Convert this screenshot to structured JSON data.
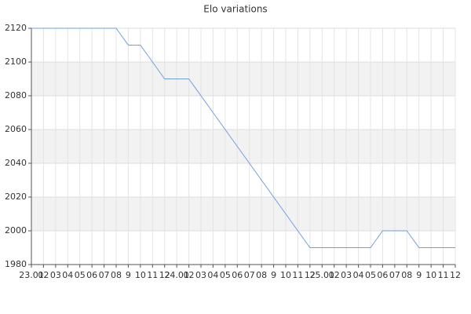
{
  "chart_data": {
    "type": "line",
    "title": "Elo variations",
    "categories": [
      "23.01",
      "02",
      "03",
      "04",
      "05",
      "06",
      "07",
      "08",
      "9",
      "10",
      "11",
      "12",
      "24.01",
      "02",
      "03",
      "04",
      "05",
      "06",
      "07",
      "08",
      "9",
      "10",
      "11",
      "12",
      "25.01",
      "02",
      "03",
      "04",
      "05",
      "06",
      "07",
      "08",
      "9",
      "10",
      "11",
      "12"
    ],
    "series": [
      {
        "name": "Elo",
        "color": "#6f9fdc",
        "values": [
          2120,
          2120,
          2120,
          2120,
          2120,
          2120,
          2120,
          2120,
          2110,
          2110,
          2100,
          2090,
          2090,
          2090,
          2080,
          2070,
          2060,
          2050,
          2040,
          2030,
          2020,
          2010,
          2000,
          1990,
          1990,
          1990,
          1990,
          1990,
          1990,
          2000,
          2000,
          2000,
          1990,
          1990,
          1990,
          1990
        ]
      }
    ],
    "ylim": [
      1980,
      2120
    ],
    "yticks": [
      1980,
      2000,
      2020,
      2040,
      2060,
      2080,
      2100,
      2120
    ],
    "grid": true
  }
}
